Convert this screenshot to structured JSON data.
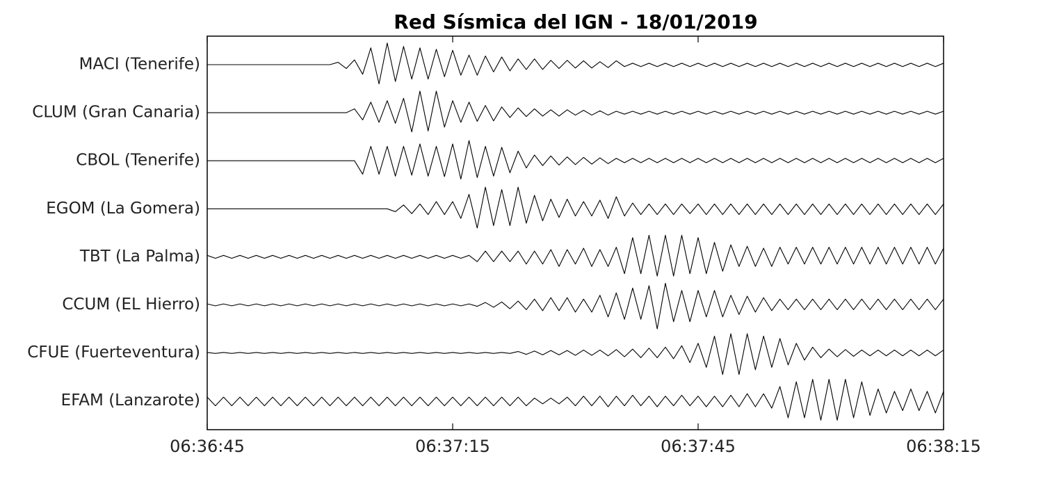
{
  "chart_data": {
    "type": "seismogram",
    "title": "Red Sísmica del IGN - 18/01/2019",
    "color": "#000000",
    "x": [
      0,
      1,
      2,
      3,
      4,
      5,
      6,
      7,
      8,
      9,
      10,
      11,
      12,
      13,
      14,
      15,
      16,
      17,
      18,
      19,
      20,
      21,
      22,
      23,
      24,
      25,
      26,
      27,
      28,
      29,
      30,
      31,
      32,
      33,
      34,
      35,
      36,
      37,
      38,
      39,
      40,
      41,
      42,
      43,
      44,
      45,
      46,
      47,
      48,
      49,
      50,
      51,
      52,
      53,
      54,
      55,
      56,
      57,
      58,
      59,
      60,
      61,
      62,
      63,
      64,
      65,
      66,
      67,
      68,
      69,
      70,
      71,
      72,
      73,
      74,
      75,
      76,
      77,
      78,
      79,
      80,
      81,
      82,
      83,
      84,
      85,
      86,
      87,
      88,
      89,
      90
    ],
    "xlim": [
      0,
      90
    ],
    "xticks": [
      {
        "value": 0,
        "label": "06:36:45"
      },
      {
        "value": 30,
        "label": "06:37:15"
      },
      {
        "value": 60,
        "label": "06:37:45"
      },
      {
        "value": 90,
        "label": "06:38:15"
      }
    ],
    "series": [
      {
        "name": "MACI (Tenerife)",
        "values": [
          0,
          0,
          0,
          0,
          0,
          0,
          0,
          0,
          0,
          0,
          0,
          0,
          0,
          0,
          0,
          0,
          0.05,
          0.08,
          0.1,
          0.2,
          0.35,
          0.4,
          0.45,
          0.35,
          0.38,
          0.3,
          0.35,
          0.3,
          0.32,
          0.25,
          0.3,
          0.22,
          0.2,
          0.22,
          0.18,
          0.15,
          0.16,
          0.13,
          0.12,
          0.1,
          0.12,
          0.1,
          0.09,
          0.08,
          0.09,
          0.07,
          0.08,
          0.07,
          0.06,
          0.06,
          0.08,
          0.04,
          0.03,
          0.04,
          0.03,
          0.04,
          0.03,
          0.04,
          0.03,
          0.04,
          0.03,
          0.04,
          0.03,
          0.04,
          0.03,
          0.04,
          0.03,
          0.04,
          0.03,
          0.04,
          0.03,
          0.04,
          0.03,
          0.04,
          0.03,
          0.04,
          0.03,
          0.04,
          0.03,
          0.04,
          0.03,
          0.04,
          0.03,
          0.04,
          0.03,
          0.04,
          0.03,
          0.04,
          0.03,
          0.04,
          0.03
        ]
      },
      {
        "name": "CLUM (Gran Canaria)",
        "values": [
          0,
          0,
          0,
          0,
          0,
          0,
          0,
          0,
          0,
          0,
          0,
          0,
          0,
          0,
          0,
          0,
          0,
          0,
          0.08,
          0.15,
          0.22,
          0.2,
          0.25,
          0.22,
          0.3,
          0.4,
          0.45,
          0.38,
          0.45,
          0.3,
          0.25,
          0.2,
          0.22,
          0.18,
          0.15,
          0.17,
          0.12,
          0.1,
          0.1,
          0.08,
          0.08,
          0.07,
          0.06,
          0.07,
          0.06,
          0.05,
          0.05,
          0.05,
          0.04,
          0.05,
          0.03,
          0.03,
          0.03,
          0.03,
          0.03,
          0.03,
          0.03,
          0.03,
          0.03,
          0.03,
          0.03,
          0.03,
          0.03,
          0.03,
          0.03,
          0.03,
          0.03,
          0.03,
          0.03,
          0.03,
          0.03,
          0.03,
          0.03,
          0.03,
          0.03,
          0.03,
          0.03,
          0.03,
          0.03,
          0.03,
          0.03,
          0.03,
          0.03,
          0.03,
          0.03,
          0.03,
          0.03,
          0.03,
          0.03,
          0.03,
          0.03
        ]
      },
      {
        "name": "CBOL (Tenerife)",
        "values": [
          0,
          0,
          0,
          0,
          0,
          0,
          0,
          0,
          0,
          0,
          0,
          0,
          0,
          0,
          0,
          0,
          0,
          0,
          0,
          0.28,
          0.3,
          0.28,
          0.3,
          0.32,
          0.3,
          0.3,
          0.35,
          0.32,
          0.3,
          0.33,
          0.35,
          0.38,
          0.42,
          0.35,
          0.3,
          0.32,
          0.28,
          0.25,
          0.2,
          0.15,
          0.12,
          0.1,
          0.1,
          0.09,
          0.08,
          0.08,
          0.07,
          0.07,
          0.06,
          0.06,
          0.05,
          0.04,
          0.05,
          0.04,
          0.05,
          0.04,
          0.05,
          0.04,
          0.05,
          0.04,
          0.05,
          0.04,
          0.05,
          0.04,
          0.05,
          0.04,
          0.05,
          0.04,
          0.05,
          0.04,
          0.05,
          0.04,
          0.05,
          0.04,
          0.05,
          0.04,
          0.05,
          0.04,
          0.05,
          0.04,
          0.05,
          0.04,
          0.05,
          0.04,
          0.05,
          0.04,
          0.05,
          0.04,
          0.05,
          0.04,
          0.05
        ]
      },
      {
        "name": "EGOM (La Gomera)",
        "values": [
          0,
          0,
          0,
          0,
          0,
          0,
          0,
          0,
          0,
          0,
          0,
          0,
          0,
          0,
          0,
          0,
          0,
          0,
          0,
          0,
          0,
          0,
          0,
          0.06,
          0.08,
          0.1,
          0.1,
          0.12,
          0.15,
          0.12,
          0.15,
          0.2,
          0.3,
          0.4,
          0.45,
          0.35,
          0.4,
          0.35,
          0.45,
          0.3,
          0.28,
          0.25,
          0.2,
          0.18,
          0.2,
          0.15,
          0.15,
          0.15,
          0.18,
          0.2,
          0.25,
          0.15,
          0.12,
          0.12,
          0.1,
          0.12,
          0.1,
          0.12,
          0.1,
          0.1,
          0.1,
          0.12,
          0.1,
          0.12,
          0.1,
          0.12,
          0.1,
          0.12,
          0.1,
          0.12,
          0.1,
          0.12,
          0.1,
          0.12,
          0.1,
          0.12,
          0.1,
          0.12,
          0.1,
          0.12,
          0.1,
          0.12,
          0.1,
          0.12,
          0.1,
          0.12,
          0.1,
          0.12,
          0.1,
          0.12,
          0.1
        ]
      },
      {
        "name": "TBT (La Palma)",
        "values": [
          0.03,
          0.03,
          0.03,
          0.03,
          0.03,
          0.03,
          0.03,
          0.03,
          0.03,
          0.03,
          0.03,
          0.03,
          0.03,
          0.03,
          0.03,
          0.03,
          0.03,
          0.03,
          0.03,
          0.03,
          0.03,
          0.03,
          0.03,
          0.03,
          0.03,
          0.03,
          0.03,
          0.03,
          0.03,
          0.03,
          0.03,
          0.03,
          0.03,
          0.1,
          0.12,
          0.1,
          0.12,
          0.1,
          0.12,
          0.15,
          0.12,
          0.15,
          0.15,
          0.2,
          0.15,
          0.15,
          0.18,
          0.2,
          0.15,
          0.2,
          0.2,
          0.35,
          0.4,
          0.35,
          0.45,
          0.4,
          0.45,
          0.4,
          0.45,
          0.35,
          0.4,
          0.35,
          0.3,
          0.3,
          0.25,
          0.2,
          0.22,
          0.2,
          0.18,
          0.2,
          0.2,
          0.15,
          0.2,
          0.15,
          0.2,
          0.15,
          0.2,
          0.15,
          0.2,
          0.15,
          0.2,
          0.15,
          0.2,
          0.15,
          0.2,
          0.15,
          0.2,
          0.15,
          0.2,
          0.15,
          0.18
        ]
      },
      {
        "name": "CCUM (EL Hierro)",
        "values": [
          0.02,
          0.02,
          0.02,
          0.02,
          0.02,
          0.02,
          0.02,
          0.02,
          0.02,
          0.02,
          0.02,
          0.02,
          0.02,
          0.02,
          0.02,
          0.02,
          0.02,
          0.02,
          0.02,
          0.02,
          0.02,
          0.02,
          0.02,
          0.02,
          0.02,
          0.02,
          0.02,
          0.02,
          0.02,
          0.02,
          0.02,
          0.02,
          0.02,
          0.03,
          0.05,
          0.05,
          0.06,
          0.08,
          0.08,
          0.1,
          0.12,
          0.12,
          0.15,
          0.12,
          0.15,
          0.15,
          0.12,
          0.15,
          0.2,
          0.25,
          0.25,
          0.3,
          0.35,
          0.3,
          0.4,
          0.5,
          0.45,
          0.35,
          0.3,
          0.35,
          0.3,
          0.25,
          0.3,
          0.25,
          0.2,
          0.2,
          0.18,
          0.15,
          0.15,
          0.12,
          0.12,
          0.1,
          0.12,
          0.1,
          0.12,
          0.1,
          0.12,
          0.1,
          0.12,
          0.1,
          0.12,
          0.1,
          0.12,
          0.1,
          0.12,
          0.1,
          0.12,
          0.1,
          0.12,
          0.1,
          0.12
        ]
      },
      {
        "name": "CFUE (Fuerteventura)",
        "values": [
          0.01,
          0.01,
          0.01,
          0.01,
          0.01,
          0.01,
          0.01,
          0.01,
          0.01,
          0.01,
          0.01,
          0.01,
          0.01,
          0.01,
          0.01,
          0.01,
          0.01,
          0.01,
          0.01,
          0.01,
          0.01,
          0.01,
          0.01,
          0.01,
          0.01,
          0.01,
          0.01,
          0.01,
          0.01,
          0.01,
          0.01,
          0.01,
          0.01,
          0.01,
          0.01,
          0.01,
          0.01,
          0.01,
          0.03,
          0.03,
          0.04,
          0.04,
          0.05,
          0.04,
          0.05,
          0.05,
          0.06,
          0.05,
          0.06,
          0.06,
          0.07,
          0.08,
          0.08,
          0.1,
          0.1,
          0.1,
          0.12,
          0.12,
          0.15,
          0.2,
          0.2,
          0.3,
          0.35,
          0.45,
          0.4,
          0.45,
          0.4,
          0.35,
          0.35,
          0.3,
          0.3,
          0.25,
          0.2,
          0.15,
          0.12,
          0.1,
          0.08,
          0.08,
          0.07,
          0.07,
          0.06,
          0.06,
          0.06,
          0.06,
          0.06,
          0.06,
          0.06,
          0.06,
          0.06,
          0.06,
          0.06
        ]
      },
      {
        "name": "EFAM (Lanzarote)",
        "values": [
          0.08,
          0.1,
          0.08,
          0.1,
          0.08,
          0.1,
          0.08,
          0.1,
          0.08,
          0.1,
          0.08,
          0.1,
          0.08,
          0.1,
          0.08,
          0.1,
          0.08,
          0.1,
          0.08,
          0.1,
          0.08,
          0.1,
          0.08,
          0.1,
          0.08,
          0.1,
          0.08,
          0.1,
          0.08,
          0.1,
          0.08,
          0.1,
          0.08,
          0.1,
          0.08,
          0.1,
          0.08,
          0.1,
          0.08,
          0.1,
          0.06,
          0.06,
          0.06,
          0.06,
          0.08,
          0.1,
          0.1,
          0.1,
          0.1,
          0.12,
          0.1,
          0.1,
          0.12,
          0.1,
          0.1,
          0.12,
          0.1,
          0.1,
          0.12,
          0.1,
          0.1,
          0.12,
          0.1,
          0.12,
          0.12,
          0.12,
          0.15,
          0.12,
          0.15,
          0.15,
          0.3,
          0.35,
          0.4,
          0.35,
          0.45,
          0.4,
          0.45,
          0.4,
          0.45,
          0.35,
          0.4,
          0.3,
          0.25,
          0.25,
          0.2,
          0.2,
          0.25,
          0.2,
          0.2,
          0.25,
          0.2
        ]
      }
    ]
  }
}
